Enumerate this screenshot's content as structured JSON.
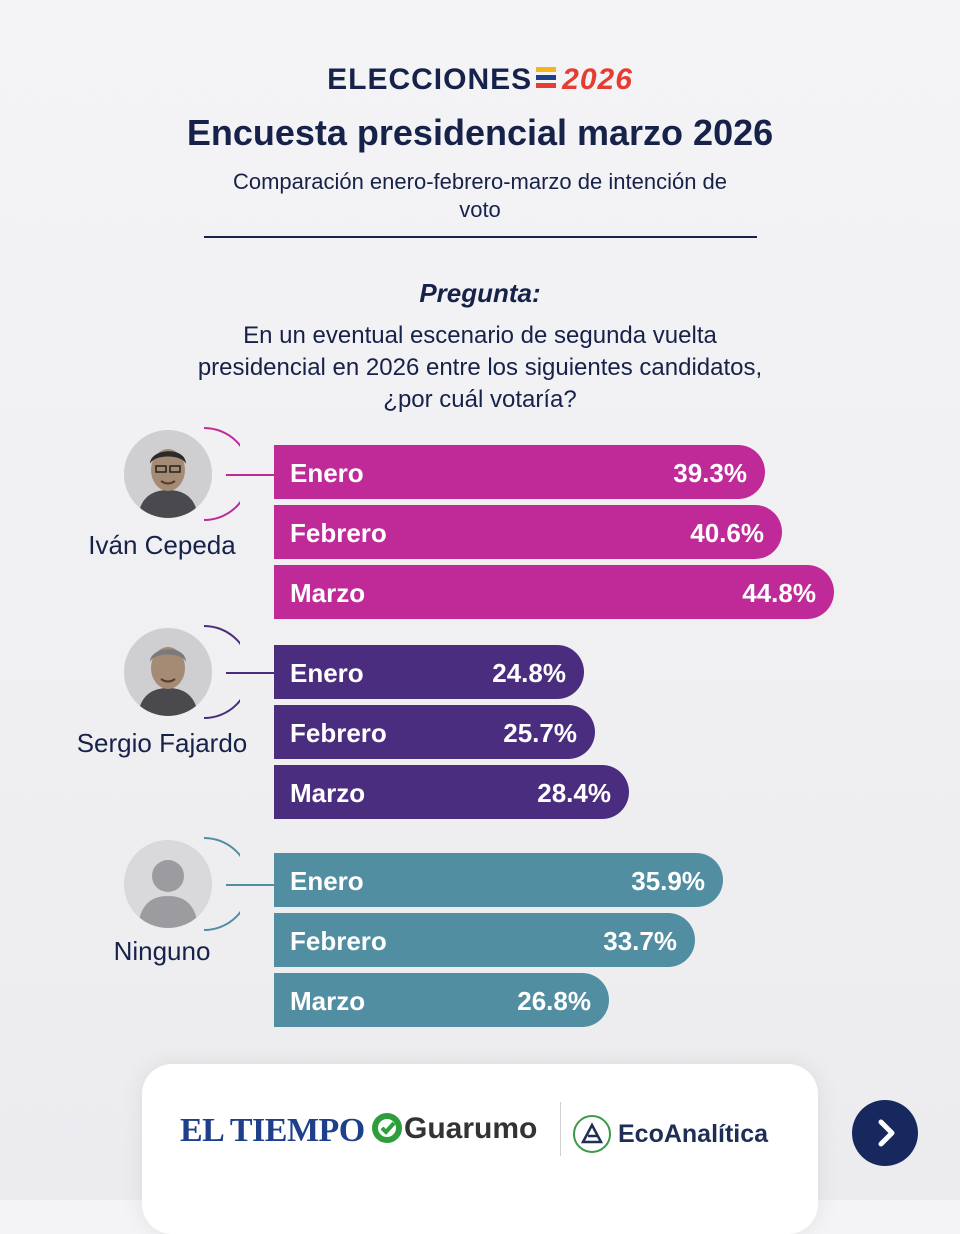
{
  "brand": {
    "word": "ELECCIONES",
    "year": "2026"
  },
  "title": "Encuesta presidencial marzo 2026",
  "subtitle": "Comparación enero-febrero-marzo de intención de voto",
  "question": {
    "label": "Pregunta:",
    "text": "En un eventual escenario de segunda vuelta presidencial en 2026 entre los siguientes candidatos, ¿por cuál votaría?"
  },
  "chart_data": {
    "type": "bar",
    "orientation": "horizontal",
    "unit": "%",
    "categories": [
      "Enero",
      "Febrero",
      "Marzo"
    ],
    "series": [
      {
        "name": "Iván Cepeda",
        "color": "#c02a98",
        "values": [
          39.3,
          40.6,
          44.8
        ],
        "labels": [
          "39.3%",
          "40.6%",
          "44.8%"
        ]
      },
      {
        "name": "Sergio Fajardo",
        "color": "#4a2d7e",
        "values": [
          24.8,
          25.7,
          28.4
        ],
        "labels": [
          "24.8%",
          "25.7%",
          "28.4%"
        ]
      },
      {
        "name": "Ninguno",
        "color": "#528ea1",
        "values": [
          35.9,
          33.7,
          26.8
        ],
        "labels": [
          "35.9%",
          "33.7%",
          "26.8%"
        ]
      }
    ]
  },
  "footer": {
    "logos": [
      "EL TIEMPO",
      "Guarumo",
      "EcoAnalítica"
    ],
    "next_icon": "chevron-right-icon"
  }
}
